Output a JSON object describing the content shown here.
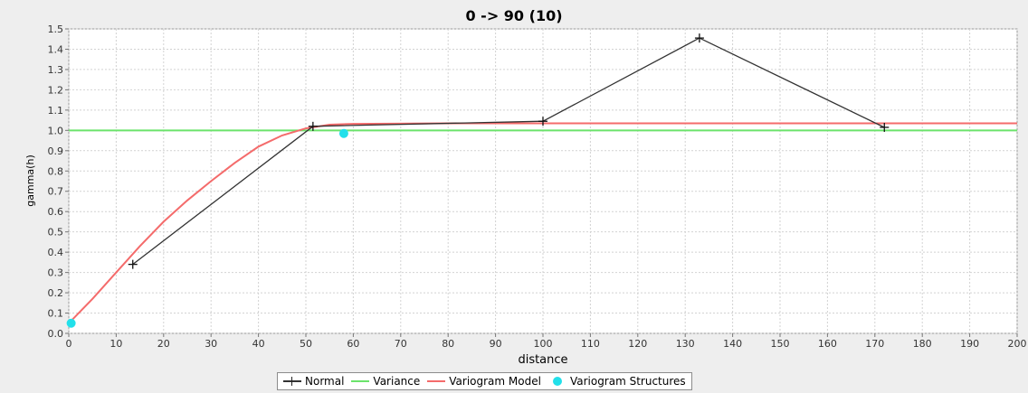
{
  "chart_data": {
    "type": "line",
    "title": "0 -> 90 (10)",
    "xlabel": "distance",
    "ylabel": "gamma(h)",
    "xlim": [
      0,
      200
    ],
    "ylim": [
      0,
      1.5
    ],
    "x_ticks": [
      0,
      10,
      20,
      30,
      40,
      50,
      60,
      70,
      80,
      90,
      100,
      110,
      120,
      130,
      140,
      150,
      160,
      170,
      180,
      190,
      200
    ],
    "y_ticks": [
      0.0,
      0.1,
      0.2,
      0.3,
      0.4,
      0.5,
      0.6,
      0.7,
      0.8,
      0.9,
      1.0,
      1.1,
      1.2,
      1.3,
      1.4,
      1.5
    ],
    "grid": true,
    "legend_position": "bottom",
    "series": [
      {
        "name": "Normal",
        "kind": "line-markers",
        "color": "#333333",
        "points": [
          [
            13.5,
            0.34
          ],
          [
            51.5,
            1.02
          ],
          [
            100,
            1.045
          ],
          [
            133,
            1.455
          ],
          [
            172,
            1.015
          ]
        ]
      },
      {
        "name": "Variance",
        "kind": "hline",
        "color": "#6be36b",
        "y": 1.0
      },
      {
        "name": "Variogram Model",
        "kind": "curve",
        "color": "#f46b6b",
        "points": [
          [
            0,
            0.05
          ],
          [
            5,
            0.17
          ],
          [
            10,
            0.3
          ],
          [
            15,
            0.43
          ],
          [
            20,
            0.55
          ],
          [
            25,
            0.655
          ],
          [
            30,
            0.75
          ],
          [
            35,
            0.84
          ],
          [
            40,
            0.92
          ],
          [
            45,
            0.975
          ],
          [
            50,
            1.01
          ],
          [
            55,
            1.028
          ],
          [
            60,
            1.032
          ],
          [
            80,
            1.035
          ],
          [
            100,
            1.035
          ],
          [
            150,
            1.035
          ],
          [
            200,
            1.035
          ]
        ]
      },
      {
        "name": "Variogram Structures",
        "kind": "scatter",
        "color": "#22e0ea",
        "points": [
          [
            0.5,
            0.05
          ],
          [
            58,
            0.985
          ]
        ]
      }
    ]
  }
}
